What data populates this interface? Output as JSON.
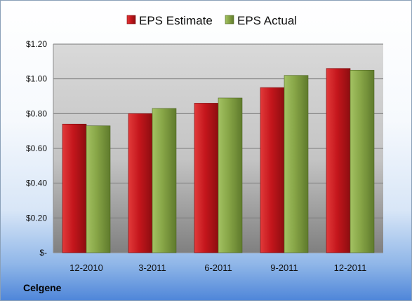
{
  "company": "Celgene",
  "chart_data": {
    "type": "bar",
    "title": "",
    "xlabel": "",
    "ylabel": "",
    "categories": [
      "12-2010",
      "3-2011",
      "6-2011",
      "9-2011",
      "12-2011"
    ],
    "series": [
      {
        "name": "EPS Estimate",
        "values": [
          0.74,
          0.8,
          0.86,
          0.95,
          1.06
        ],
        "color": "#cc1a1a"
      },
      {
        "name": "EPS Actual",
        "values": [
          0.73,
          0.83,
          0.89,
          1.02,
          1.05
        ],
        "color": "#8aa84a"
      }
    ],
    "ylim": [
      0,
      1.2
    ],
    "yticks": [
      0,
      0.2,
      0.4,
      0.6,
      0.8,
      1.0,
      1.2
    ],
    "ytick_labels": [
      "$-",
      "$0.20",
      "$0.40",
      "$0.60",
      "$0.80",
      "$1.00",
      "$1.20"
    ],
    "grid": true,
    "legend": "top"
  }
}
